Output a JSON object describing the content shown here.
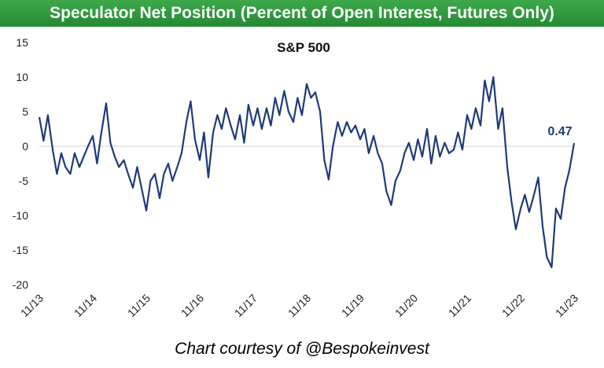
{
  "header": {
    "title": "Speculator Net Position (Percent of Open Interest, Futures Only)"
  },
  "footer": {
    "credit": "Chart courtesy of @Bespokeinvest"
  },
  "colors": {
    "banner": "#2e9a3e",
    "line": "#1f3a7a",
    "zero_line": "#d9d9d9"
  },
  "chart_data": {
    "type": "line",
    "title": "S&P 500",
    "xlabel": "",
    "ylabel": "",
    "ylim": [
      -20,
      15
    ],
    "yticks": [
      15,
      10,
      5,
      0,
      -5,
      -10,
      -15,
      -20
    ],
    "xticks": [
      "11/13",
      "11/14",
      "11/15",
      "11/16",
      "11/17",
      "11/18",
      "11/19",
      "11/20",
      "11/21",
      "11/22",
      "11/23"
    ],
    "grid": false,
    "last_value_label": "0.47",
    "series": [
      {
        "x": [
          2013.87,
          2013.95,
          2014.03,
          2014.12,
          2014.2,
          2014.28,
          2014.36,
          2014.45,
          2014.53,
          2014.62,
          2014.7,
          2014.78,
          2014.87,
          2014.95,
          2015.03,
          2015.12,
          2015.2,
          2015.28,
          2015.36,
          2015.45,
          2015.53,
          2015.62,
          2015.7,
          2015.78,
          2015.87,
          2015.95,
          2016.03,
          2016.12,
          2016.2,
          2016.28,
          2016.36,
          2016.45,
          2016.53,
          2016.62,
          2016.7,
          2016.78,
          2016.87,
          2016.95,
          2017.03,
          2017.12,
          2017.2,
          2017.28,
          2017.36,
          2017.45,
          2017.53,
          2017.62,
          2017.7,
          2017.78,
          2017.87,
          2017.95,
          2018.03,
          2018.12,
          2018.2,
          2018.28,
          2018.36,
          2018.45,
          2018.53,
          2018.62,
          2018.7,
          2018.78,
          2018.87,
          2018.95,
          2019.03,
          2019.12,
          2019.2,
          2019.28,
          2019.36,
          2019.45,
          2019.53,
          2019.62,
          2019.7,
          2019.78,
          2019.87,
          2019.95,
          2020.03,
          2020.12,
          2020.2,
          2020.28,
          2020.36,
          2020.45,
          2020.53,
          2020.62,
          2020.7,
          2020.78,
          2020.87,
          2020.95,
          2021.03,
          2021.12,
          2021.2,
          2021.28,
          2021.36,
          2021.45,
          2021.53,
          2021.62,
          2021.7,
          2021.78,
          2021.87,
          2021.95,
          2022.03,
          2022.12,
          2022.2,
          2022.28,
          2022.36,
          2022.45,
          2022.53,
          2022.62,
          2022.7,
          2022.78,
          2022.87,
          2022.95,
          2023.03,
          2023.12,
          2023.2,
          2023.28,
          2023.36,
          2023.45,
          2023.53,
          2023.62,
          2023.7,
          2023.78,
          2023.87
        ],
        "values": [
          4.2,
          0.8,
          4.5,
          -0.5,
          -4,
          -1,
          -3,
          -4,
          -1,
          -3,
          -1.5,
          0,
          1.5,
          -2.5,
          2,
          6.2,
          0.5,
          -1.5,
          -3,
          -2,
          -4,
          -6,
          -3,
          -6,
          -9.3,
          -5,
          -4,
          -7.5,
          -4,
          -2.5,
          -5,
          -3,
          -1,
          3.5,
          6.5,
          1,
          -2,
          2,
          -4.5,
          2,
          4.5,
          2.5,
          5.5,
          3,
          1,
          4.5,
          0.5,
          6,
          3,
          5.5,
          2.5,
          5.5,
          3,
          7,
          4.5,
          8,
          5,
          3.5,
          7,
          4.5,
          9,
          7,
          7.8,
          5,
          -2,
          -4.8,
          0,
          3.5,
          1.5,
          3.5,
          2,
          3,
          1,
          2.5,
          -1,
          1.5,
          -1,
          -2.5,
          -6.5,
          -8.5,
          -5,
          -3.5,
          -1,
          0.5,
          -2,
          1,
          -1.5,
          2.5,
          -2.5,
          1.5,
          -1.5,
          0.5,
          -1,
          -0.5,
          2,
          -0.5,
          4.5,
          2.5,
          5.5,
          3,
          9.5,
          6.5,
          10,
          2.5,
          5.5,
          -3,
          -8,
          -12,
          -9,
          -7,
          -9.5,
          -7,
          -4.5,
          -11.5,
          -16,
          -17.5,
          -9,
          -10.5,
          -6,
          -3.5,
          0.47
        ]
      }
    ]
  }
}
